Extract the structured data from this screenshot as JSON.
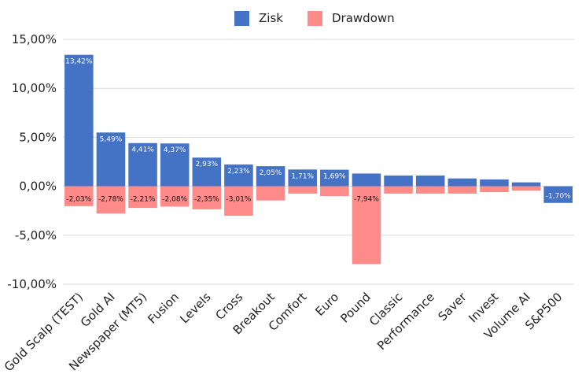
{
  "chart_data": {
    "type": "bar",
    "categories": [
      "Gold Scalp (TEST)",
      "Gold AI",
      "Newspaper (MT5)",
      "Fusion",
      "Levels",
      "Cross",
      "Breakout",
      "Comfort",
      "Euro",
      "Pound",
      "Classic",
      "Performance",
      "Saver",
      "Invest",
      "Volume AI",
      "S&P500"
    ],
    "series": [
      {
        "name": "Zisk",
        "color": "#4472C4",
        "values": [
          13.42,
          5.49,
          4.41,
          4.37,
          2.93,
          2.23,
          2.05,
          1.71,
          1.69,
          1.3,
          1.1,
          1.1,
          0.8,
          0.7,
          0.4,
          -1.7
        ],
        "labels": [
          "13,42%",
          "5,49%",
          "4,41%",
          "4,37%",
          "2,93%",
          "2,23%",
          "2,05%",
          "1,71%",
          "1,69%",
          "",
          "",
          "",
          "",
          "",
          "",
          "-1,70%"
        ]
      },
      {
        "name": "Drawdown",
        "color": "#FF8A8A",
        "values": [
          -2.03,
          -2.78,
          -2.21,
          -2.08,
          -2.35,
          -3.01,
          -1.45,
          -0.75,
          -1.0,
          -7.94,
          -0.75,
          -0.75,
          -0.75,
          -0.6,
          -0.45,
          0
        ],
        "labels": [
          "-2,03%",
          "-2,78%",
          "-2,21%",
          "-2,08%",
          "-2,35%",
          "-3,01%",
          "",
          "",
          "",
          "-7,94%",
          "",
          "",
          "",
          "",
          "",
          ""
        ]
      }
    ],
    "ylim": [
      -10,
      15
    ],
    "yticks": [
      15,
      10,
      5,
      0,
      -5,
      -10
    ],
    "ytick_labels": [
      "15,00%",
      "10,00%",
      "5,00%",
      "0,00%",
      "-5,00%",
      "-10,00%"
    ],
    "grid": true,
    "legend": "top-center"
  }
}
